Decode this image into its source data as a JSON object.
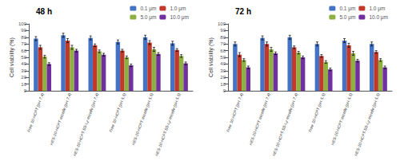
{
  "chart_data": [
    {
      "type": "bar",
      "title": "48 h",
      "ylabel": "Cell viability (%)",
      "categories": [
        "Free 10-HCPT (pH 7.4)",
        "HES-10-HCPT micelle (pH 7.4)",
        "HES-10-HCPT-SS-Ly micelle (pH 7.4)",
        "Free 10-HCPT (pH 5.5)",
        "HES-10-HCPT micelle (pH 5.5)",
        "HES-10-HCPT-SS-Ly micelle (pH 5.5)"
      ],
      "series": [
        {
          "name": "0.1 μm",
          "color": "#4472c4",
          "values": [
            78,
            83,
            79,
            73,
            80,
            71
          ],
          "errors": [
            3,
            3,
            3,
            3,
            3,
            3
          ]
        },
        {
          "name": "1.0 μm",
          "color": "#c0392b",
          "values": [
            65,
            75,
            68,
            60,
            72,
            61
          ],
          "errors": [
            3,
            3,
            2,
            2,
            3,
            2
          ]
        },
        {
          "name": "5.0 μm",
          "color": "#8db040",
          "values": [
            51,
            65,
            59,
            50,
            62,
            52
          ],
          "errors": [
            2,
            3,
            2,
            2,
            3,
            2
          ]
        },
        {
          "name": "10.0 μm",
          "color": "#7030a0",
          "values": [
            40,
            60,
            54,
            38,
            55,
            41
          ],
          "errors": [
            2,
            2,
            2,
            2,
            2,
            2
          ]
        }
      ],
      "ylim": [
        0,
        100
      ],
      "yticks": [
        0,
        10,
        20,
        30,
        40,
        50,
        60,
        70,
        80,
        90,
        100
      ],
      "grid": false,
      "legend": "upper right"
    },
    {
      "type": "bar",
      "title": "72 h",
      "ylabel": "Cell viability (%)",
      "categories": [
        "Free 10-HCPT (pH 7.4)",
        "HES-10-HCPT micelle (pH 7.4)",
        "HES-10-HCPT-SS-Ly micelle (pH 7.4)",
        "Free 10-HCPT (pH 5.5)",
        "HES-10-HCPT micelle (pH 5.5)",
        "HES-10-HCPT-SS-Ly micelle (pH 5.5)"
      ],
      "series": [
        {
          "name": "0.1 μm",
          "color": "#4472c4",
          "values": [
            70,
            79,
            80,
            70,
            75,
            70
          ],
          "errors": [
            3,
            3,
            3,
            3,
            3,
            3
          ]
        },
        {
          "name": "1.0 μm",
          "color": "#c0392b",
          "values": [
            54,
            70,
            65,
            52,
            68,
            58
          ],
          "errors": [
            3,
            3,
            2,
            2,
            3,
            2
          ]
        },
        {
          "name": "5.0 μm",
          "color": "#8db040",
          "values": [
            46,
            62,
            57,
            43,
            56,
            46
          ],
          "errors": [
            2,
            3,
            2,
            2,
            3,
            2
          ]
        },
        {
          "name": "10.0 μm",
          "color": "#7030a0",
          "values": [
            35,
            56,
            50,
            32,
            45,
            35
          ],
          "errors": [
            2,
            2,
            2,
            2,
            2,
            2
          ]
        }
      ],
      "ylim": [
        0,
        100
      ],
      "yticks": [
        0,
        10,
        20,
        30,
        40,
        50,
        60,
        70,
        80,
        90,
        100
      ],
      "grid": false,
      "legend": "upper right"
    }
  ]
}
